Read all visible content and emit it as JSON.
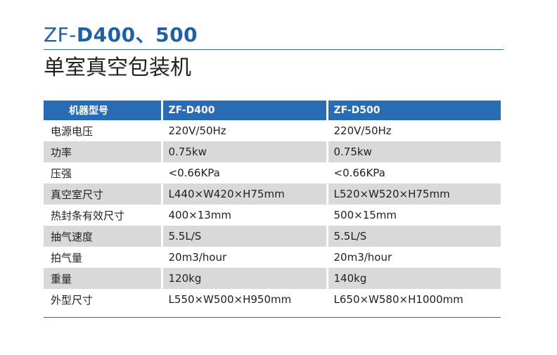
{
  "header": {
    "model_prefix": "ZF-",
    "model_numbers": "D400、500",
    "product_name": "单室真空包装机"
  },
  "table": {
    "columns": [
      "机器型号",
      "ZF-D400",
      "ZF-D500"
    ],
    "rows": [
      [
        "电源电压",
        "220V/50Hz",
        "220V/50Hz"
      ],
      [
        "功率",
        "0.75kw",
        "0.75kw"
      ],
      [
        "压强",
        "<0.66KPa",
        "<0.66KPa"
      ],
      [
        "真空室尺寸",
        "L440×W420×H75mm",
        "L520×W520×H75mm"
      ],
      [
        "热封条有效尺寸",
        "400×13mm",
        "500×15mm"
      ],
      [
        "抽气速度",
        "5.5L/S",
        "5.5L/S"
      ],
      [
        "拍气量",
        "20m3/hour",
        "20m3/hour"
      ],
      [
        "重量",
        "120kg",
        "140kg"
      ],
      [
        "外型尺寸",
        "L550×W500×H950mm",
        "L650×W580×H1000mm"
      ]
    ]
  },
  "colors": {
    "accent": "#2a6cb3",
    "title_blue": "#1f5fa8",
    "row_shade": "#d9d9d9"
  }
}
